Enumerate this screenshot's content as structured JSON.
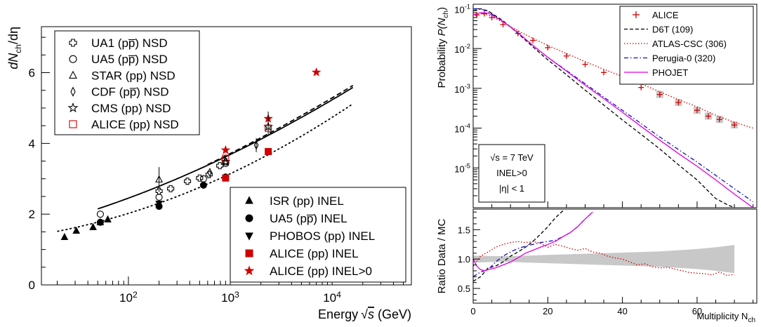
{
  "chart_data": [
    {
      "type": "scatter",
      "xlabel": "Energy",
      "xlabel_unit": "(GeV)",
      "ylabel": "dN",
      "ylabel_sub": "ch",
      "ylabel_tail": "/dη",
      "xscale": "log",
      "xlim": [
        14,
        60000
      ],
      "ylim": [
        0,
        7.3
      ],
      "yticks": [
        "0",
        "2",
        "4",
        "6"
      ],
      "xticks": [
        {
          "value": 100,
          "base": "10",
          "exp": "2"
        },
        {
          "value": 1000,
          "base": "10",
          "exp": "3"
        },
        {
          "value": 10000,
          "base": "10",
          "exp": "4"
        }
      ],
      "fits": [
        {
          "name": "fit-upper",
          "style": "dashed",
          "a": 0.94,
          "b": 0.5,
          "p": 1.56,
          "x_range": [
            600,
            16000
          ]
        },
        {
          "name": "fit-middle",
          "style": "solid",
          "a": 1.18,
          "b": 0.4,
          "p": 1.67,
          "x_range": [
            50,
            16000
          ]
        },
        {
          "name": "fit-lower",
          "style": "dotted",
          "a": 1.15,
          "b": 0.212,
          "p": 2.04,
          "x_range": [
            20,
            16000
          ]
        }
      ],
      "series": [
        {
          "name": "UA1 (pp̅) NSD",
          "marker": "open-cross",
          "color": "#000000",
          "points": [
            [
              200,
              2.65
            ],
            [
              260,
              2.72
            ],
            [
              380,
              2.93
            ],
            [
              500,
              3.02
            ],
            [
              620,
              3.12
            ],
            [
              790,
              3.37
            ],
            [
              900,
              3.48
            ]
          ]
        },
        {
          "name": "UA5 (pp̅) NSD",
          "marker": "open-circle",
          "color": "#000000",
          "points": [
            [
              53,
              2.0
            ],
            [
              200,
              2.48
            ],
            [
              546,
              3.0
            ],
            [
              900,
              3.43
            ]
          ]
        },
        {
          "name": "STAR (pp) NSD",
          "marker": "open-triangle",
          "color": "#000000",
          "points": [
            [
              200,
              2.98
            ]
          ]
        },
        {
          "name": "CDF (pp̅) NSD",
          "marker": "open-diamond",
          "color": "#000000",
          "points": [
            [
              630,
              3.18
            ],
            [
              1800,
              3.95
            ]
          ]
        },
        {
          "name": "CMS (pp) NSD",
          "marker": "open-star",
          "color": "#000000",
          "points": [
            [
              900,
              3.48
            ],
            [
              2360,
              4.47
            ]
          ]
        },
        {
          "name": "ALICE (pp) NSD",
          "marker": "open-square",
          "color": "#d00000",
          "points": [
            [
              900,
              3.58
            ],
            [
              2360,
              4.43
            ]
          ]
        }
      ],
      "series_inel": [
        {
          "name": "ISR (pp) INEL",
          "marker": "filled-triangle",
          "color": "#000000",
          "points": [
            [
              23.6,
              1.35
            ],
            [
              30.8,
              1.53
            ],
            [
              45,
              1.63
            ],
            [
              53,
              1.77
            ],
            [
              62.7,
              1.85
            ]
          ]
        },
        {
          "name": "UA5 (pp̅) INEL",
          "marker": "filled-circle",
          "color": "#000000",
          "points": [
            [
              53,
              1.77
            ],
            [
              200,
              2.22
            ],
            [
              546,
              2.82
            ],
            [
              900,
              3.05
            ]
          ]
        },
        {
          "name": "PHOBOS (pp) INEL",
          "marker": "filled-triangle-down",
          "color": "#000000",
          "points": [
            [
              200,
              2.3
            ]
          ]
        },
        {
          "name": "ALICE (pp) INEL",
          "marker": "filled-square",
          "color": "#d00000",
          "points": [
            [
              900,
              3.02
            ],
            [
              2360,
              3.77
            ]
          ]
        },
        {
          "name": "ALICE (pp) INEL>0",
          "marker": "filled-star",
          "color": "#d00000",
          "points": [
            [
              900,
              3.81
            ],
            [
              2360,
              4.7
            ],
            [
              7000,
              6.01
            ]
          ]
        }
      ]
    },
    {
      "type": "line",
      "ylabel": "Probability",
      "ylabel_math": "P(N",
      "ylabel_sub": "ch",
      "ylabel_close": ")",
      "xlabel": "Multiplicity N",
      "xlabel_sub": "ch",
      "yscale": "log",
      "xlim": [
        0,
        76
      ],
      "ylim": [
        1e-06,
        0.13
      ],
      "yticks": [
        {
          "base": "10",
          "exp": "-1"
        },
        {
          "base": "10",
          "exp": "-2"
        },
        {
          "base": "10",
          "exp": "-3"
        },
        {
          "base": "10",
          "exp": "-4"
        },
        {
          "base": "10",
          "exp": "-5"
        }
      ],
      "xticks": [
        "0",
        "20",
        "40",
        "60"
      ],
      "annotations": [
        "√s = 7 TeV",
        "INEL>0",
        "|η| < 1"
      ],
      "series": [
        {
          "name": "ALICE",
          "style": "markers",
          "color": "#d00000",
          "x": [
            1,
            3,
            5,
            8,
            12,
            16,
            20,
            25,
            30,
            35,
            40,
            45,
            50,
            55,
            60,
            63,
            66,
            70
          ],
          "y": [
            0.07,
            0.075,
            0.06,
            0.04,
            0.024,
            0.016,
            0.0105,
            0.0065,
            0.004,
            0.0025,
            0.0017,
            0.00105,
            0.0007,
            0.00044,
            0.00028,
            0.0002,
            0.000165,
            0.00012
          ]
        },
        {
          "name": "D6T (109)",
          "style": "dashed",
          "color": "#000000",
          "x": [
            0,
            2,
            4,
            8,
            12,
            16,
            20,
            25,
            30,
            35,
            40,
            45,
            50,
            55,
            60,
            65,
            68,
            70
          ],
          "y": [
            0.09,
            0.1,
            0.088,
            0.05,
            0.024,
            0.011,
            0.0052,
            0.0022,
            0.0009,
            0.00038,
            0.00016,
            7e-05,
            3e-05,
            1.2e-05,
            5e-06,
            1.7e-06,
            1.2e-06,
            1e-06
          ]
        },
        {
          "name": "ATLAS-CSC (306)",
          "style": "dotted",
          "color": "#d00000",
          "x": [
            0,
            2,
            4,
            8,
            12,
            16,
            20,
            25,
            30,
            35,
            40,
            45,
            50,
            55,
            60,
            65,
            70,
            75
          ],
          "y": [
            0.06,
            0.075,
            0.07,
            0.046,
            0.028,
            0.018,
            0.012,
            0.0075,
            0.0047,
            0.003,
            0.002,
            0.0013,
            0.00082,
            0.00052,
            0.00034,
            0.00021,
            0.00014,
            0.0001
          ]
        },
        {
          "name": "Perugia-0 (320)",
          "style": "dashdot",
          "color": "#1010c0",
          "x": [
            0,
            2,
            4,
            8,
            12,
            16,
            20,
            25,
            30,
            35,
            40,
            45,
            50,
            55,
            60,
            65,
            70,
            75
          ],
          "y": [
            0.1,
            0.1,
            0.085,
            0.048,
            0.025,
            0.012,
            0.006,
            0.0028,
            0.0013,
            0.0006,
            0.00028,
            0.00013,
            6e-05,
            2.9e-05,
            1.4e-05,
            6.5e-06,
            3e-06,
            1.4e-06
          ]
        },
        {
          "name": "PHOJET",
          "style": "solid",
          "color": "#e000e0",
          "x": [
            0,
            2,
            4,
            8,
            12,
            16,
            20,
            25,
            30,
            35,
            40,
            45,
            50,
            55,
            60,
            65,
            70,
            75
          ],
          "y": [
            0.07,
            0.08,
            0.078,
            0.048,
            0.025,
            0.012,
            0.006,
            0.0027,
            0.0012,
            0.00055,
            0.00025,
            0.00011,
            5e-05,
            2.3e-05,
            1.1e-05,
            5e-06,
            2.2e-06,
            1e-06
          ]
        }
      ]
    },
    {
      "type": "line",
      "ylabel": "Ratio Data / MC",
      "xlim": [
        0,
        76
      ],
      "ylim": [
        0.25,
        1.85
      ],
      "yticks": [
        "0.5",
        "1.0",
        "1.5"
      ],
      "band": {
        "color": "#c8c8c8",
        "x": [
          0,
          5,
          10,
          15,
          20,
          25,
          30,
          35,
          40,
          45,
          50,
          55,
          60,
          65,
          70
        ],
        "lo": [
          0.94,
          0.95,
          0.95,
          0.94,
          0.93,
          0.92,
          0.91,
          0.9,
          0.89,
          0.88,
          0.87,
          0.85,
          0.83,
          0.8,
          0.76
        ],
        "hi": [
          1.06,
          1.05,
          1.05,
          1.06,
          1.07,
          1.08,
          1.09,
          1.1,
          1.11,
          1.12,
          1.13,
          1.15,
          1.17,
          1.2,
          1.24
        ]
      },
      "series": [
        {
          "name": "D6T (109)",
          "style": "dashed",
          "color": "#000000",
          "x": [
            0,
            2,
            4,
            6,
            8,
            10,
            12,
            14,
            16,
            18,
            20,
            22,
            24,
            25
          ],
          "y": [
            0.62,
            0.7,
            0.85,
            0.88,
            0.95,
            1.05,
            1.12,
            1.2,
            1.3,
            1.42,
            1.55,
            1.7,
            1.82,
            1.9
          ]
        },
        {
          "name": "ATLAS-CSC (306)",
          "style": "dotted",
          "color": "#d00000",
          "x": [
            0,
            2,
            4,
            6,
            8,
            10,
            12,
            14,
            16,
            18,
            20,
            22,
            24,
            26,
            28,
            30,
            32,
            34,
            36,
            38,
            40,
            42,
            44,
            46,
            48,
            50,
            52,
            54,
            56,
            58,
            60,
            62,
            64,
            66,
            68,
            70
          ],
          "y": [
            0.88,
            1.05,
            1.12,
            1.2,
            1.25,
            1.28,
            1.3,
            1.28,
            1.3,
            1.27,
            1.2,
            1.25,
            1.22,
            1.18,
            1.15,
            1.18,
            1.12,
            1.1,
            1.05,
            1.02,
            1.0,
            0.95,
            0.9,
            0.92,
            0.87,
            0.85,
            0.86,
            0.83,
            0.8,
            0.77,
            0.76,
            0.75,
            0.73,
            0.78,
            0.72,
            0.74
          ]
        },
        {
          "name": "Perugia-0 (320)",
          "style": "dashdot",
          "color": "#1010c0",
          "x": [
            0,
            2,
            4,
            6,
            8,
            10,
            12,
            14,
            16,
            18,
            20,
            22,
            24,
            26,
            28,
            30,
            32
          ],
          "y": [
            0.7,
            0.78,
            0.82,
            0.95,
            1.05,
            1.12,
            1.18,
            1.22,
            1.25,
            1.28,
            1.3,
            1.32,
            1.38,
            1.45,
            1.55,
            1.68,
            1.8
          ]
        },
        {
          "name": "PHOJET",
          "style": "solid",
          "color": "#e000e0",
          "x": [
            0,
            1,
            2,
            3,
            4,
            6,
            8,
            10,
            12,
            14,
            16,
            18,
            20,
            22,
            24,
            26,
            28,
            30,
            32
          ],
          "y": [
            1.0,
            0.88,
            0.82,
            0.8,
            0.82,
            0.85,
            0.9,
            0.95,
            1.02,
            1.1,
            1.15,
            1.2,
            1.25,
            1.3,
            1.38,
            1.45,
            1.55,
            1.68,
            1.8
          ]
        }
      ]
    }
  ]
}
